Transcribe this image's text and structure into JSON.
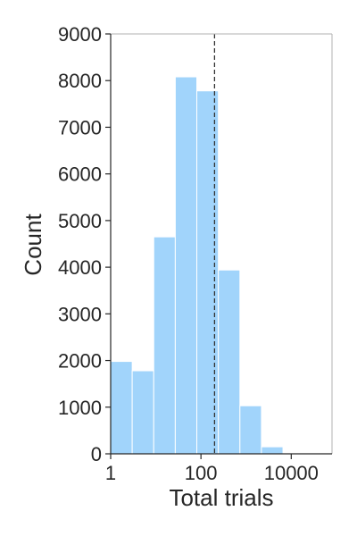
{
  "chart_data": {
    "type": "bar",
    "title": "",
    "xlabel": "Total trials",
    "ylabel": "Count",
    "x_scale": "log",
    "xlim": [
      1,
      80000
    ],
    "ylim": [
      0,
      9000
    ],
    "xticks": [
      {
        "value": 1,
        "label": "1"
      },
      {
        "value": 100,
        "label": "100"
      },
      {
        "value": 10000,
        "label": "10000"
      }
    ],
    "yticks": [
      0,
      1000,
      2000,
      3000,
      4000,
      5000,
      6000,
      7000,
      8000,
      9000
    ],
    "bins": [
      {
        "x0": 1,
        "x1": 3,
        "value": 1980
      },
      {
        "x0": 3,
        "x1": 9,
        "value": 1780
      },
      {
        "x0": 9,
        "x1": 27,
        "value": 4650
      },
      {
        "x0": 27,
        "x1": 81,
        "value": 8080
      },
      {
        "x0": 81,
        "x1": 243,
        "value": 7780
      },
      {
        "x0": 243,
        "x1": 729,
        "value": 3940
      },
      {
        "x0": 729,
        "x1": 2187,
        "value": 1030
      },
      {
        "x0": 2187,
        "x1": 6561,
        "value": 150
      },
      {
        "x0": 6561,
        "x1": 19683,
        "value": 8
      }
    ],
    "reference_line": {
      "x": 200,
      "style": "dashed"
    },
    "grid": false,
    "colors": {
      "bar": "#a1d4fb",
      "bar_edge": "#ffffff",
      "ref_line": "#333333",
      "axis": "#262626",
      "spine": "#b0b0b0"
    }
  }
}
